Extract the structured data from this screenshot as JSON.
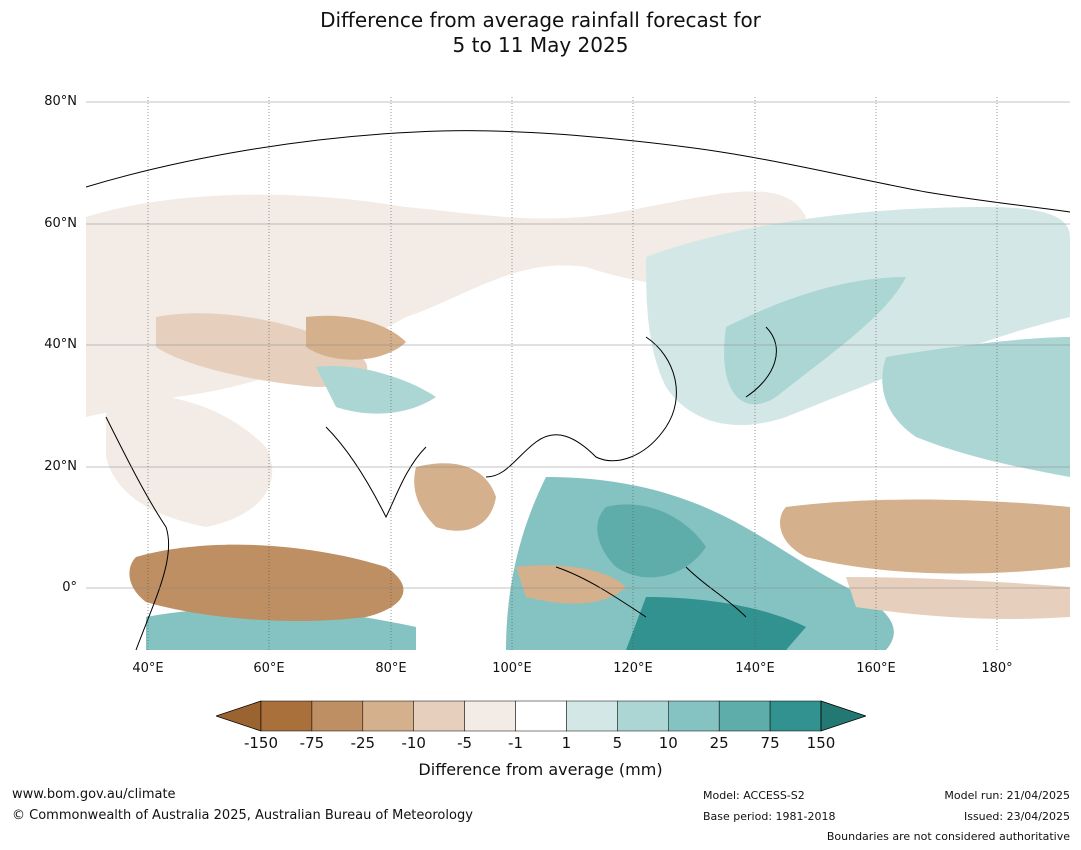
{
  "title": {
    "line1": "Difference from average rainfall forecast for",
    "line2": "5 to 11 May 2025"
  },
  "map": {
    "lat_labels": [
      "80°N",
      "60°N",
      "40°N",
      "20°N",
      "0°"
    ],
    "lon_labels": [
      "40°E",
      "60°E",
      "80°E",
      "100°E",
      "120°E",
      "140°E",
      "160°E",
      "180°"
    ]
  },
  "colorbar": {
    "ticks": [
      "-150",
      "-75",
      "-25",
      "-10",
      "-5",
      "-1",
      "1",
      "5",
      "10",
      "25",
      "75",
      "150"
    ],
    "colors": [
      "#a9703c",
      "#bd8f62",
      "#d4b08c",
      "#e6d0bd",
      "#f3ebe5",
      "#ffffff",
      "#d3e8e6",
      "#acd6d4",
      "#84c3c1",
      "#5eadab",
      "#31928f"
    ],
    "under_color": "#9b6330",
    "over_color": "#237873",
    "label": "Difference from average (mm)"
  },
  "footer": {
    "website": "www.bom.gov.au/climate",
    "copyright": "© Commonwealth of Australia 2025, Australian Bureau of Meteorology",
    "model": "Model: ACCESS-S2",
    "base_period": "Base period: 1981-2018",
    "model_run": "Model run: 21/04/2025",
    "issued": "Issued: 23/04/2025",
    "disclaimer": "Boundaries are not considered authoritative"
  }
}
